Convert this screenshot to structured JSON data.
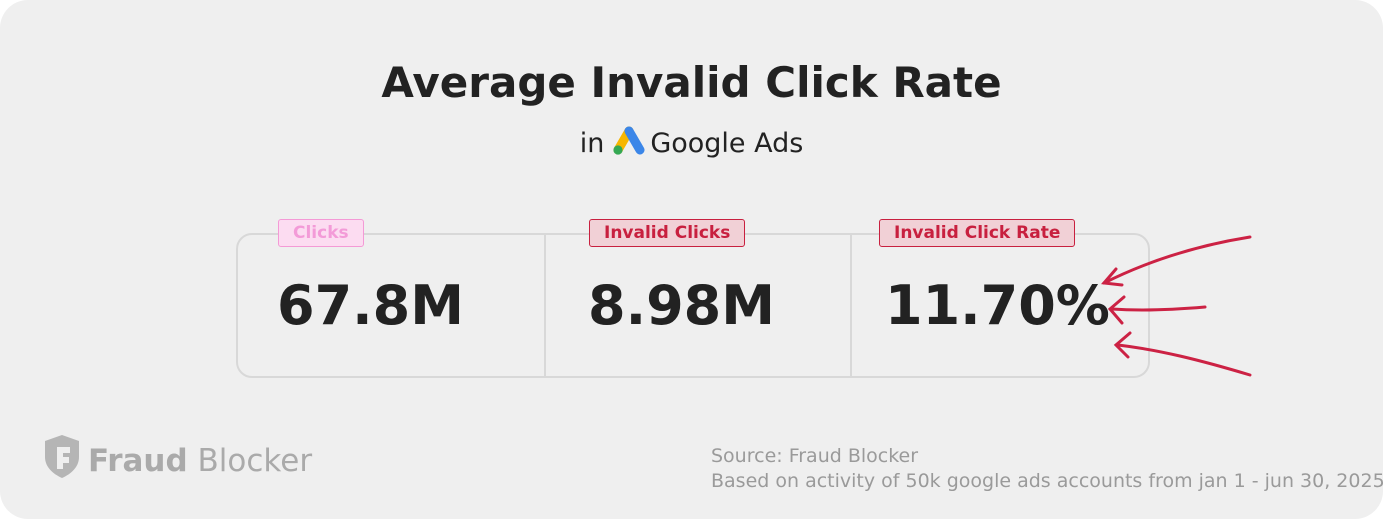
{
  "header": {
    "title": "Average Invalid Click Rate",
    "subtitle_prefix": "in",
    "platform": "Google Ads"
  },
  "stats": [
    {
      "label": "Clicks",
      "value": "67.8M"
    },
    {
      "label": "Invalid Clicks",
      "value": "8.98M"
    },
    {
      "label": "Invalid Click Rate",
      "value": "11.70%"
    }
  ],
  "footer": {
    "brand_bold": "Fraud",
    "brand_light": "Blocker",
    "source": "Source: Fraud Blocker",
    "note": "Based on activity of 50k google ads accounts from jan 1 - jun 30, 2025"
  }
}
